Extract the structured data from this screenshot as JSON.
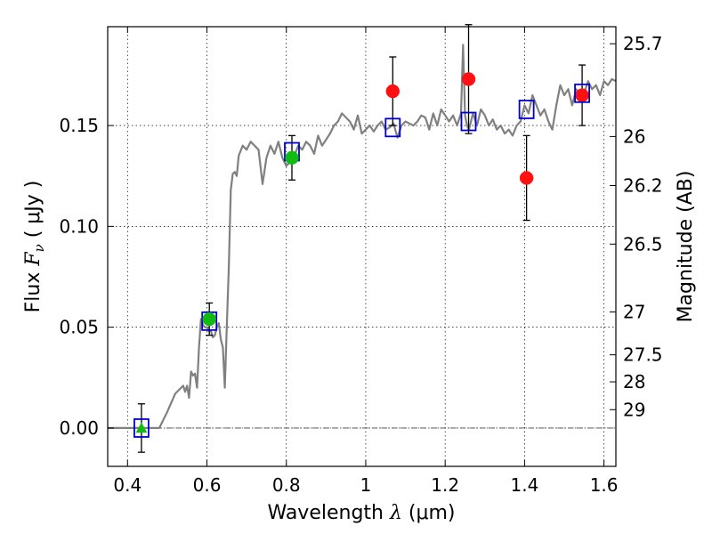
{
  "chart_data": {
    "type": "scatter",
    "xlabel_prefix": "Wavelength  ",
    "xlabel_symbol": "λ",
    "xlabel_unit": " (μm)",
    "ylabel_prefix": "Flux  ",
    "ylabel_symbol": "F",
    "ylabel_subscript": "ν",
    "ylabel_unit": "  ( μJy )",
    "y2label": "Magnitude (AB)",
    "xlim": [
      0.35,
      1.63
    ],
    "ylim": [
      -0.019,
      0.199
    ],
    "grid": true,
    "x_ticks": [
      {
        "value": 0.4,
        "label": "0.4"
      },
      {
        "value": 0.6,
        "label": "0.6"
      },
      {
        "value": 0.8,
        "label": "0.8"
      },
      {
        "value": 1.0,
        "label": "1"
      },
      {
        "value": 1.2,
        "label": "1.2"
      },
      {
        "value": 1.4,
        "label": "1.4"
      },
      {
        "value": 1.6,
        "label": "1.6"
      }
    ],
    "y_ticks": [
      {
        "value": 0.0,
        "label": "0.00"
      },
      {
        "value": 0.05,
        "label": "0.05"
      },
      {
        "value": 0.1,
        "label": "0.10"
      },
      {
        "value": 0.15,
        "label": "0.15"
      }
    ],
    "y2_ticks": [
      {
        "value": 25.7,
        "label": "25.7"
      },
      {
        "value": 26.0,
        "label": "26"
      },
      {
        "value": 26.2,
        "label": "26.2"
      },
      {
        "value": 26.5,
        "label": "26.5"
      },
      {
        "value": 27.0,
        "label": "27"
      },
      {
        "value": 27.5,
        "label": "27.5"
      },
      {
        "value": 28.0,
        "label": "28"
      },
      {
        "value": 29.0,
        "label": "29"
      }
    ],
    "zero_line": 0.0,
    "model_spectrum": {
      "color": "#808080",
      "x": [
        0.35,
        0.48,
        0.5,
        0.52,
        0.54,
        0.545,
        0.55,
        0.555,
        0.56,
        0.565,
        0.57,
        0.575,
        0.58,
        0.585,
        0.59,
        0.595,
        0.6,
        0.605,
        0.61,
        0.615,
        0.62,
        0.625,
        0.63,
        0.635,
        0.64,
        0.645,
        0.65,
        0.655,
        0.66,
        0.665,
        0.67,
        0.675,
        0.68,
        0.69,
        0.7,
        0.71,
        0.72,
        0.73,
        0.74,
        0.75,
        0.76,
        0.77,
        0.78,
        0.79,
        0.8,
        0.81,
        0.82,
        0.83,
        0.84,
        0.85,
        0.86,
        0.87,
        0.88,
        0.89,
        0.9,
        0.91,
        0.92,
        0.93,
        0.94,
        0.95,
        0.96,
        0.97,
        0.98,
        0.99,
        1.0,
        1.01,
        1.02,
        1.03,
        1.04,
        1.05,
        1.06,
        1.07,
        1.08,
        1.09,
        1.1,
        1.11,
        1.12,
        1.13,
        1.14,
        1.15,
        1.16,
        1.17,
        1.18,
        1.19,
        1.2,
        1.21,
        1.22,
        1.23,
        1.24,
        1.245,
        1.25,
        1.255,
        1.26,
        1.27,
        1.28,
        1.29,
        1.3,
        1.31,
        1.32,
        1.33,
        1.34,
        1.35,
        1.36,
        1.37,
        1.38,
        1.39,
        1.4,
        1.41,
        1.42,
        1.43,
        1.44,
        1.45,
        1.46,
        1.47,
        1.48,
        1.49,
        1.5,
        1.51,
        1.52,
        1.53,
        1.54,
        1.55,
        1.56,
        1.57,
        1.58,
        1.59,
        1.6,
        1.61,
        1.62,
        1.63
      ],
      "y": [
        0.0,
        0.0,
        0.008,
        0.017,
        0.021,
        0.018,
        0.021,
        0.015,
        0.028,
        0.026,
        0.027,
        0.02,
        0.04,
        0.054,
        0.051,
        0.05,
        0.05,
        0.048,
        0.048,
        0.045,
        0.046,
        0.05,
        0.052,
        0.044,
        0.04,
        0.02,
        0.05,
        0.08,
        0.118,
        0.126,
        0.127,
        0.125,
        0.135,
        0.14,
        0.138,
        0.142,
        0.14,
        0.138,
        0.121,
        0.134,
        0.14,
        0.136,
        0.142,
        0.134,
        0.13,
        0.132,
        0.135,
        0.14,
        0.138,
        0.142,
        0.14,
        0.136,
        0.145,
        0.14,
        0.143,
        0.146,
        0.15,
        0.152,
        0.156,
        0.154,
        0.152,
        0.148,
        0.155,
        0.146,
        0.148,
        0.15,
        0.147,
        0.15,
        0.152,
        0.148,
        0.149,
        0.151,
        0.144,
        0.15,
        0.152,
        0.151,
        0.15,
        0.152,
        0.155,
        0.154,
        0.148,
        0.156,
        0.15,
        0.158,
        0.155,
        0.152,
        0.155,
        0.15,
        0.156,
        0.19,
        0.155,
        0.15,
        0.148,
        0.156,
        0.15,
        0.158,
        0.155,
        0.15,
        0.153,
        0.148,
        0.15,
        0.146,
        0.148,
        0.145,
        0.15,
        0.152,
        0.16,
        0.156,
        0.165,
        0.16,
        0.155,
        0.158,
        0.152,
        0.148,
        0.16,
        0.17,
        0.165,
        0.168,
        0.16,
        0.168,
        0.165,
        0.166,
        0.172,
        0.168,
        0.17,
        0.165,
        0.172,
        0.17,
        0.173,
        0.172
      ]
    },
    "series": [
      {
        "name": "",
        "marker": "square",
        "color": "#0000cc",
        "points": [
          {
            "x": 0.435,
            "y": 0.0
          },
          {
            "x": 0.606,
            "y": 0.053
          },
          {
            "x": 0.814,
            "y": 0.137
          },
          {
            "x": 1.068,
            "y": 0.149
          },
          {
            "x": 1.259,
            "y": 0.152
          },
          {
            "x": 1.405,
            "y": 0.158
          },
          {
            "x": 1.545,
            "y": 0.166
          }
        ]
      },
      {
        "name": "",
        "marker": "circle",
        "color": "#11bb11",
        "points": [
          {
            "x": 0.606,
            "y": 0.054,
            "err": 0.008
          },
          {
            "x": 0.814,
            "y": 0.134,
            "err": 0.011
          }
        ]
      },
      {
        "name": "",
        "marker": "triangle",
        "color": "#11bb11",
        "points": [
          {
            "x": 0.435,
            "y": 0.0,
            "err": 0.012
          }
        ]
      },
      {
        "name": "",
        "marker": "circle",
        "color": "#ff1111",
        "points": [
          {
            "x": 1.068,
            "y": 0.167,
            "err": 0.017
          },
          {
            "x": 1.259,
            "y": 0.173,
            "err": 0.027
          },
          {
            "x": 1.405,
            "y": 0.124,
            "err": 0.021
          },
          {
            "x": 1.545,
            "y": 0.165,
            "err": 0.015
          }
        ]
      }
    ]
  }
}
